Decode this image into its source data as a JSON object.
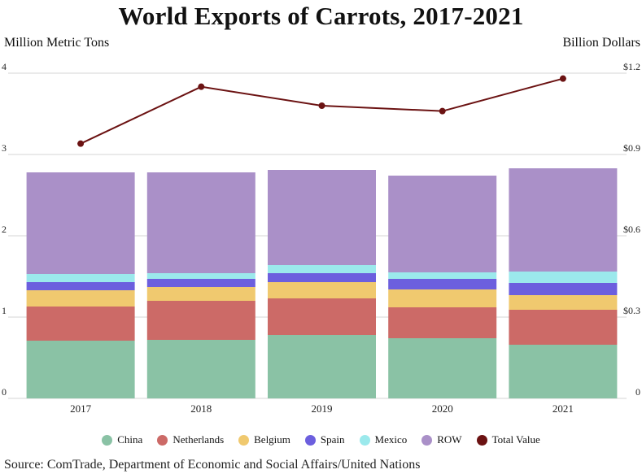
{
  "chart_data": {
    "type": "bar",
    "title": "World Exports of Carrots, 2017-2021",
    "ylabel": "Million Metric Tons",
    "y2label": "Billion Dollars",
    "ylim": [
      0,
      4
    ],
    "y2lim": [
      0,
      1.2
    ],
    "y_ticks": [
      "0",
      "1",
      "2",
      "3",
      "4"
    ],
    "y2_ticks": [
      "0",
      "$0.3",
      "$0.6",
      "$0.9",
      "$1.2"
    ],
    "categories": [
      "2017",
      "2018",
      "2019",
      "2020",
      "2021"
    ],
    "stacked": true,
    "series": [
      {
        "name": "China",
        "color": "#8ac2a5",
        "values": [
          0.71,
          0.72,
          0.78,
          0.74,
          0.66
        ]
      },
      {
        "name": "Netherlands",
        "color": "#cc6a67",
        "values": [
          0.42,
          0.48,
          0.45,
          0.38,
          0.43
        ]
      },
      {
        "name": "Belgium",
        "color": "#f0c96f",
        "values": [
          0.2,
          0.17,
          0.2,
          0.22,
          0.18
        ]
      },
      {
        "name": "Spain",
        "color": "#6c5fde",
        "values": [
          0.1,
          0.1,
          0.11,
          0.13,
          0.15
        ]
      },
      {
        "name": "Mexico",
        "color": "#9be9ec",
        "values": [
          0.1,
          0.07,
          0.1,
          0.08,
          0.14
        ]
      },
      {
        "name": "ROW",
        "color": "#aa90c8",
        "values": [
          1.25,
          1.24,
          1.17,
          1.19,
          1.27
        ]
      }
    ],
    "line_series": {
      "name": "Total Value",
      "color": "#6b1212",
      "axis": "right",
      "values": [
        0.94,
        1.15,
        1.08,
        1.06,
        1.18
      ]
    },
    "grid": true,
    "legend_position": "bottom"
  },
  "source": "Source: ComTrade, Department of Economic and Social Affairs/United Nations"
}
